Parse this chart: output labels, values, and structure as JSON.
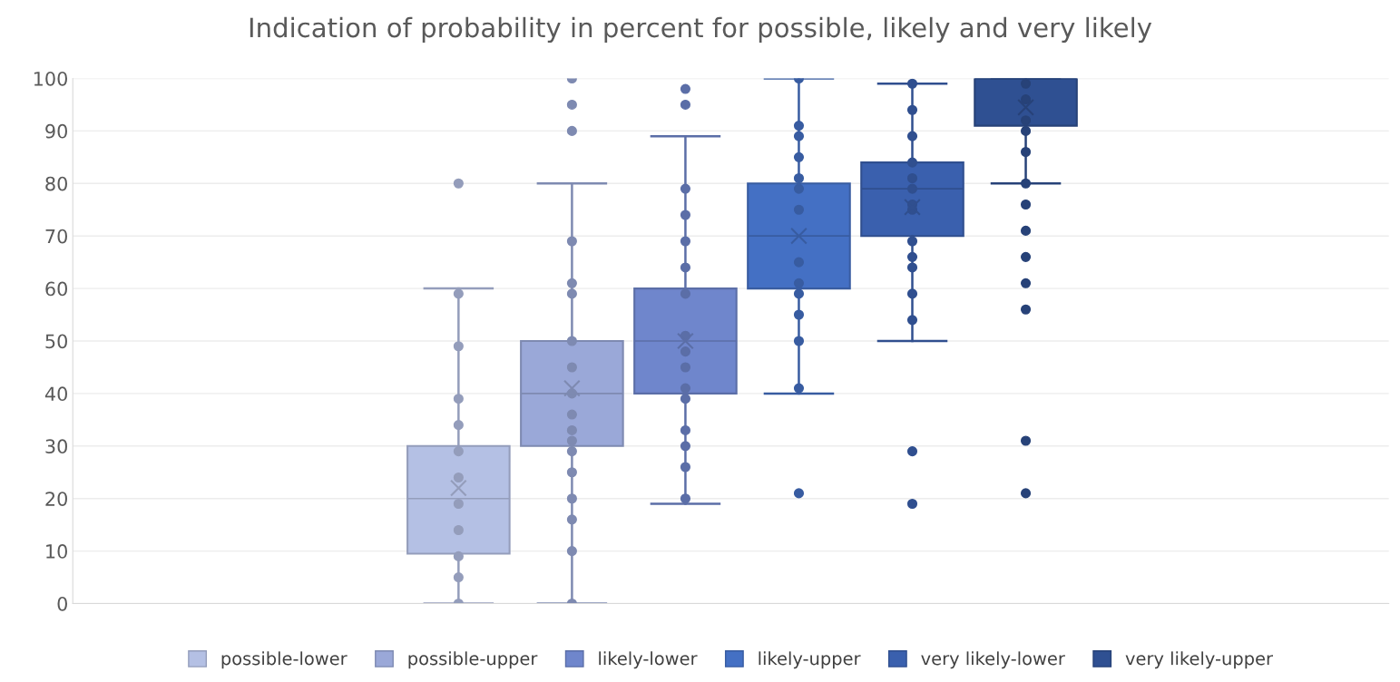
{
  "chart_data": {
    "type": "box",
    "title": "Indication of probability in percent for possible, likely and very likely",
    "categories": [
      null
    ],
    "ylim": [
      0,
      100
    ],
    "yticks": [
      0,
      10,
      20,
      30,
      40,
      50,
      60,
      70,
      80,
      90,
      100
    ],
    "grid": "y",
    "legend": "bottom",
    "marker": "circle",
    "series": [
      {
        "name": "possible-lower",
        "color": "#b4c0e4",
        "boxes": [
          {
            "low": 0,
            "q1": 9.5,
            "median": 20,
            "q3": 30,
            "high": 60,
            "mean": 22,
            "outliers": [
              0,
              5,
              9,
              14,
              19,
              24,
              29,
              34,
              39,
              49,
              59,
              80
            ]
          }
        ]
      },
      {
        "name": "possible-upper",
        "color": "#9aa8d8",
        "boxes": [
          {
            "low": 0,
            "q1": 30,
            "median": 40,
            "q3": 50,
            "high": 80,
            "mean": 41,
            "outliers": [
              0,
              10,
              16,
              20,
              25,
              29,
              31,
              33,
              36,
              40,
              45,
              50,
              59,
              61,
              69,
              90,
              95,
              100
            ]
          }
        ]
      },
      {
        "name": "likely-lower",
        "color": "#6f86cc",
        "boxes": [
          {
            "low": 19,
            "q1": 40,
            "median": 50,
            "q3": 60,
            "high": 89,
            "mean": 50,
            "outliers": [
              20,
              26,
              30,
              33,
              39,
              41,
              45,
              48,
              51,
              59,
              64,
              69,
              74,
              79,
              95,
              98
            ]
          }
        ]
      },
      {
        "name": "likely-upper",
        "color": "#4470c4",
        "boxes": [
          {
            "low": 40,
            "q1": 60,
            "median": 70,
            "q3": 80,
            "high": 100,
            "mean": 70,
            "outliers": [
              21,
              41,
              50,
              55,
              59,
              61,
              65,
              75,
              79,
              81,
              85,
              89,
              91,
              100
            ]
          }
        ]
      },
      {
        "name": "very likely-lower",
        "color": "#3a60ae",
        "boxes": [
          {
            "low": 50,
            "q1": 70,
            "median": 79,
            "q3": 84,
            "high": 99,
            "mean": 75.5,
            "outliers": [
              19,
              29,
              54,
              59,
              64,
              66,
              69,
              75,
              76,
              79,
              81,
              84,
              89,
              94,
              99
            ]
          }
        ]
      },
      {
        "name": "very likely-upper",
        "color": "#2f5092",
        "boxes": [
          {
            "low": 80,
            "q1": 91,
            "median": 100,
            "q3": 100,
            "high": 100,
            "mean": 94.5,
            "outliers": [
              21,
              31,
              56,
              61,
              66,
              71,
              76,
              80,
              86,
              90,
              92,
              96,
              99
            ]
          }
        ]
      }
    ]
  }
}
